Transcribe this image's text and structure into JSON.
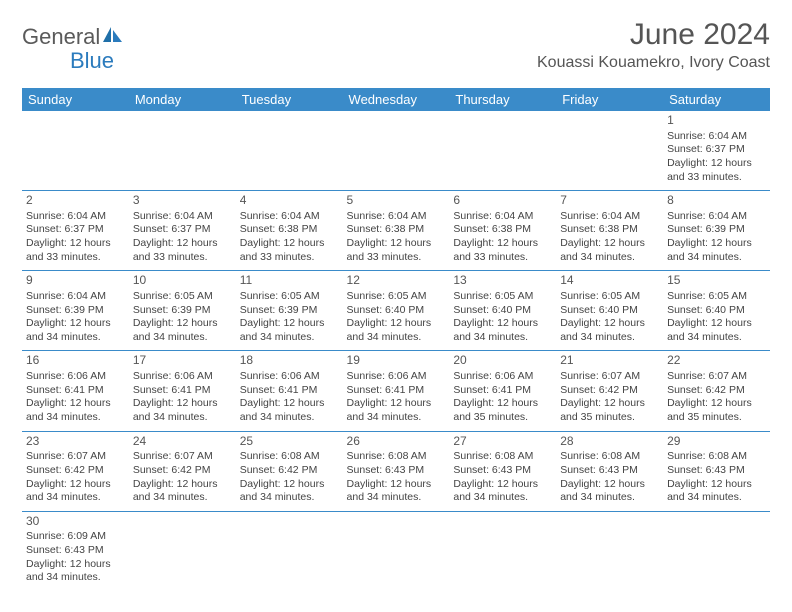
{
  "brand": {
    "part1": "General",
    "part2": "Blue"
  },
  "title": "June 2024",
  "location": "Kouassi Kouamekro, Ivory Coast",
  "colors": {
    "header_bg": "#3a8bc9",
    "header_text": "#ffffff",
    "border": "#3a8bc9",
    "logo_gray": "#5a5a5a",
    "logo_blue": "#2b7bbd",
    "text": "#444444"
  },
  "weekdays": [
    "Sunday",
    "Monday",
    "Tuesday",
    "Wednesday",
    "Thursday",
    "Friday",
    "Saturday"
  ],
  "first_weekday_index": 6,
  "days": [
    {
      "n": 1,
      "sunrise": "6:04 AM",
      "sunset": "6:37 PM",
      "dl_h": 12,
      "dl_m": 33
    },
    {
      "n": 2,
      "sunrise": "6:04 AM",
      "sunset": "6:37 PM",
      "dl_h": 12,
      "dl_m": 33
    },
    {
      "n": 3,
      "sunrise": "6:04 AM",
      "sunset": "6:37 PM",
      "dl_h": 12,
      "dl_m": 33
    },
    {
      "n": 4,
      "sunrise": "6:04 AM",
      "sunset": "6:38 PM",
      "dl_h": 12,
      "dl_m": 33
    },
    {
      "n": 5,
      "sunrise": "6:04 AM",
      "sunset": "6:38 PM",
      "dl_h": 12,
      "dl_m": 33
    },
    {
      "n": 6,
      "sunrise": "6:04 AM",
      "sunset": "6:38 PM",
      "dl_h": 12,
      "dl_m": 33
    },
    {
      "n": 7,
      "sunrise": "6:04 AM",
      "sunset": "6:38 PM",
      "dl_h": 12,
      "dl_m": 34
    },
    {
      "n": 8,
      "sunrise": "6:04 AM",
      "sunset": "6:39 PM",
      "dl_h": 12,
      "dl_m": 34
    },
    {
      "n": 9,
      "sunrise": "6:04 AM",
      "sunset": "6:39 PM",
      "dl_h": 12,
      "dl_m": 34
    },
    {
      "n": 10,
      "sunrise": "6:05 AM",
      "sunset": "6:39 PM",
      "dl_h": 12,
      "dl_m": 34
    },
    {
      "n": 11,
      "sunrise": "6:05 AM",
      "sunset": "6:39 PM",
      "dl_h": 12,
      "dl_m": 34
    },
    {
      "n": 12,
      "sunrise": "6:05 AM",
      "sunset": "6:40 PM",
      "dl_h": 12,
      "dl_m": 34
    },
    {
      "n": 13,
      "sunrise": "6:05 AM",
      "sunset": "6:40 PM",
      "dl_h": 12,
      "dl_m": 34
    },
    {
      "n": 14,
      "sunrise": "6:05 AM",
      "sunset": "6:40 PM",
      "dl_h": 12,
      "dl_m": 34
    },
    {
      "n": 15,
      "sunrise": "6:05 AM",
      "sunset": "6:40 PM",
      "dl_h": 12,
      "dl_m": 34
    },
    {
      "n": 16,
      "sunrise": "6:06 AM",
      "sunset": "6:41 PM",
      "dl_h": 12,
      "dl_m": 34
    },
    {
      "n": 17,
      "sunrise": "6:06 AM",
      "sunset": "6:41 PM",
      "dl_h": 12,
      "dl_m": 34
    },
    {
      "n": 18,
      "sunrise": "6:06 AM",
      "sunset": "6:41 PM",
      "dl_h": 12,
      "dl_m": 34
    },
    {
      "n": 19,
      "sunrise": "6:06 AM",
      "sunset": "6:41 PM",
      "dl_h": 12,
      "dl_m": 34
    },
    {
      "n": 20,
      "sunrise": "6:06 AM",
      "sunset": "6:41 PM",
      "dl_h": 12,
      "dl_m": 35
    },
    {
      "n": 21,
      "sunrise": "6:07 AM",
      "sunset": "6:42 PM",
      "dl_h": 12,
      "dl_m": 35
    },
    {
      "n": 22,
      "sunrise": "6:07 AM",
      "sunset": "6:42 PM",
      "dl_h": 12,
      "dl_m": 35
    },
    {
      "n": 23,
      "sunrise": "6:07 AM",
      "sunset": "6:42 PM",
      "dl_h": 12,
      "dl_m": 34
    },
    {
      "n": 24,
      "sunrise": "6:07 AM",
      "sunset": "6:42 PM",
      "dl_h": 12,
      "dl_m": 34
    },
    {
      "n": 25,
      "sunrise": "6:08 AM",
      "sunset": "6:42 PM",
      "dl_h": 12,
      "dl_m": 34
    },
    {
      "n": 26,
      "sunrise": "6:08 AM",
      "sunset": "6:43 PM",
      "dl_h": 12,
      "dl_m": 34
    },
    {
      "n": 27,
      "sunrise": "6:08 AM",
      "sunset": "6:43 PM",
      "dl_h": 12,
      "dl_m": 34
    },
    {
      "n": 28,
      "sunrise": "6:08 AM",
      "sunset": "6:43 PM",
      "dl_h": 12,
      "dl_m": 34
    },
    {
      "n": 29,
      "sunrise": "6:08 AM",
      "sunset": "6:43 PM",
      "dl_h": 12,
      "dl_m": 34
    },
    {
      "n": 30,
      "sunrise": "6:09 AM",
      "sunset": "6:43 PM",
      "dl_h": 12,
      "dl_m": 34
    }
  ],
  "labels": {
    "sunrise": "Sunrise:",
    "sunset": "Sunset:",
    "daylight_prefix": "Daylight:",
    "hours_word": "hours",
    "and_word": "and",
    "minutes_word": "minutes."
  }
}
